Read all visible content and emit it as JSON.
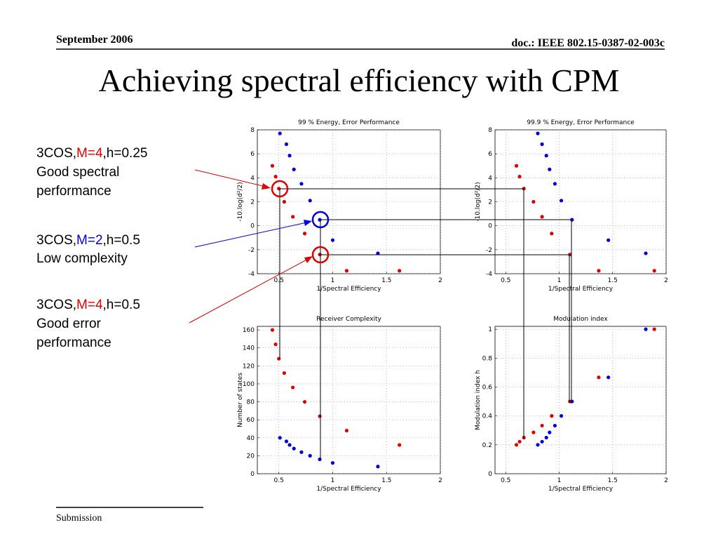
{
  "header": {
    "date": "September 2006",
    "doc": "doc.: IEEE 802.15-0387-02-003c"
  },
  "title": "Achieving spectral efficiency with CPM",
  "annotations": [
    {
      "prefix": "3COS,",
      "m": "M=4",
      "suffix": ",h=0.25",
      "line2": "Good spectral",
      "line3": "performance"
    },
    {
      "prefix": "3COS,",
      "m": "M=2",
      "suffix": ",h=0.5",
      "line2": "Low complexity"
    },
    {
      "prefix": "3COS,",
      "m": "M=4",
      "suffix": ",h=0.5",
      "line2": "Good error",
      "line3": "performance"
    }
  ],
  "footer": "Submission",
  "chart_data": [
    {
      "type": "scatter",
      "title": "99 % Energy, Error Performance",
      "x_label": "1/Spectral Efficiency",
      "y_label": "-10.log(d²/2)",
      "xlim": [
        0.3,
        2
      ],
      "xticks": [
        0.5,
        1,
        1.5,
        2
      ],
      "ylim": [
        -4,
        8
      ],
      "yticks": [
        -4,
        -2,
        0,
        2,
        4,
        6,
        8
      ],
      "grid": true,
      "series": [
        {
          "color": "#e00000",
          "x": [
            0.44,
            0.47,
            0.5,
            0.55,
            0.63,
            0.74,
            0.88,
            1.13,
            1.62
          ],
          "values": [
            5.0,
            4.1,
            3.1,
            2.0,
            0.75,
            -0.65,
            -2.4,
            -3.75,
            -3.75
          ]
        },
        {
          "color": "#0000e0",
          "x": [
            0.51,
            0.57,
            0.6,
            0.64,
            0.71,
            0.79,
            0.88,
            1.0,
            1.42
          ],
          "values": [
            7.7,
            6.8,
            5.85,
            4.7,
            3.5,
            2.1,
            0.5,
            -1.2,
            -2.3
          ]
        }
      ]
    },
    {
      "type": "scatter",
      "title": "99.9 % Energy, Error Performance",
      "x_label": "1/Spectral Efficiency",
      "y_label": "-10.log(d²/2)",
      "xlim": [
        0.4,
        2
      ],
      "xticks": [
        0.5,
        1,
        1.5,
        2
      ],
      "ylim": [
        -4,
        8
      ],
      "yticks": [
        -4,
        -2,
        0,
        2,
        4,
        6,
        8
      ],
      "grid": true,
      "series": [
        {
          "color": "#e00000",
          "x": [
            0.6,
            0.63,
            0.67,
            0.76,
            0.84,
            0.93,
            1.1,
            1.37,
            1.89
          ],
          "values": [
            5.0,
            4.1,
            3.1,
            2.0,
            0.75,
            -0.65,
            -2.4,
            -3.75,
            -3.75
          ]
        },
        {
          "color": "#0000e0",
          "x": [
            0.8,
            0.84,
            0.88,
            0.91,
            0.96,
            1.02,
            1.12,
            1.46,
            1.81
          ],
          "values": [
            7.7,
            6.8,
            5.85,
            4.7,
            3.5,
            2.1,
            0.5,
            -1.2,
            -2.3
          ]
        }
      ]
    },
    {
      "type": "scatter",
      "title": "Receiver Complexity",
      "x_label": "1/Spectral Efficiency",
      "y_label": "Number of states",
      "xlim": [
        0.3,
        2
      ],
      "xticks": [
        0.5,
        1,
        1.5,
        2
      ],
      "ylim": [
        0,
        164
      ],
      "yticks": [
        0,
        20,
        40,
        60,
        80,
        100,
        120,
        140,
        160
      ],
      "grid": true,
      "series": [
        {
          "color": "#e00000",
          "x": [
            0.44,
            0.47,
            0.5,
            0.55,
            0.63,
            0.74,
            0.88,
            1.13,
            1.62
          ],
          "values": [
            160,
            144,
            128,
            112,
            96,
            80,
            64,
            48,
            32
          ]
        },
        {
          "color": "#0000e0",
          "x": [
            0.51,
            0.57,
            0.6,
            0.64,
            0.71,
            0.79,
            0.88,
            1.0,
            1.42
          ],
          "values": [
            40,
            36,
            32,
            28,
            24,
            20,
            16,
            12,
            8
          ]
        }
      ]
    },
    {
      "type": "scatter",
      "title": "Modulation index",
      "x_label": "1/Spectral Efficiency",
      "y_label": "Modulation index h",
      "xlim": [
        0.4,
        2
      ],
      "xticks": [
        0.5,
        1,
        1.5,
        2
      ],
      "ylim": [
        0,
        1.02
      ],
      "yticks": [
        0,
        0.2,
        0.4,
        0.6,
        0.8,
        1
      ],
      "grid": true,
      "series": [
        {
          "color": "#e00000",
          "x": [
            0.6,
            0.63,
            0.67,
            0.76,
            0.84,
            0.93,
            1.1,
            1.37,
            1.89
          ],
          "values": [
            0.2,
            0.222,
            0.25,
            0.286,
            0.333,
            0.4,
            0.5,
            0.667,
            1
          ]
        },
        {
          "color": "#0000e0",
          "x": [
            0.8,
            0.84,
            0.88,
            0.91,
            0.96,
            1.02,
            1.12,
            1.46,
            1.81
          ],
          "values": [
            0.2,
            0.222,
            0.25,
            0.286,
            0.333,
            0.4,
            0.5,
            0.667,
            1
          ]
        }
      ]
    }
  ]
}
